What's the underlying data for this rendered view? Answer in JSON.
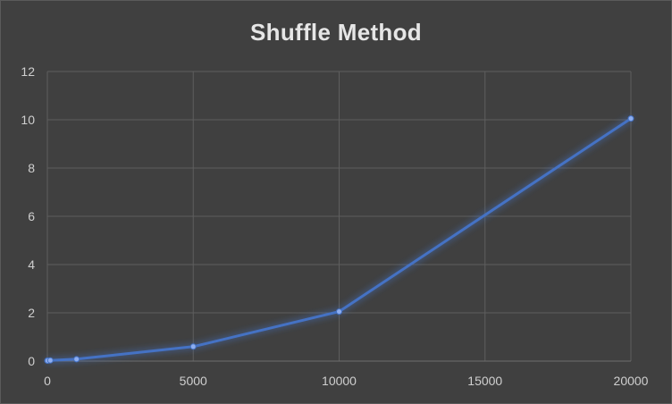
{
  "chart_data": {
    "type": "line",
    "title": "Shuffle Method",
    "xlabel": "",
    "ylabel": "",
    "xlim": [
      0,
      20000
    ],
    "ylim": [
      0,
      12
    ],
    "xticks": [
      0,
      5000,
      10000,
      15000,
      20000
    ],
    "yticks": [
      0,
      2,
      4,
      6,
      8,
      10,
      12
    ],
    "grid": true,
    "legend": "none",
    "series": [
      {
        "color": "#4472c4",
        "x": [
          0,
          10,
          100,
          1000,
          5000,
          10000,
          20000
        ],
        "y": [
          0.02,
          0.02,
          0.03,
          0.08,
          0.6,
          2.05,
          10.05
        ]
      }
    ]
  }
}
